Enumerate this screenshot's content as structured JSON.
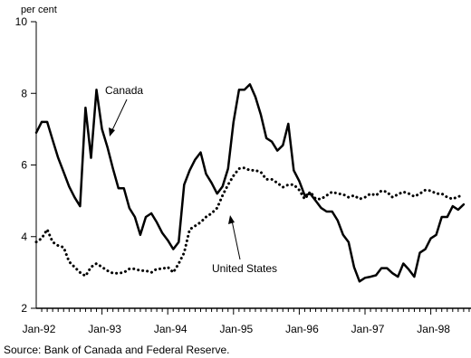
{
  "chart_data": {
    "type": "line",
    "title": "",
    "xlabel": "",
    "ylabel": "per cent",
    "ylim": [
      2,
      10
    ],
    "yticks": [
      10,
      8,
      6,
      4,
      2
    ],
    "x_start": "Jan-92",
    "x_end": "Apr-98",
    "x_ticklabels": [
      "Jan-92",
      "Jan-93",
      "Jan-94",
      "Jan-95",
      "Jan-96",
      "Jan-97",
      "Jan-98"
    ],
    "grid": false,
    "series": [
      {
        "name": "Canada",
        "style": "solid",
        "color": "#000000",
        "values": [
          6.9,
          7.2,
          7.2,
          6.7,
          6.2,
          5.8,
          5.4,
          5.1,
          4.85,
          7.6,
          6.2,
          8.1,
          7.0,
          6.5,
          5.9,
          5.35,
          5.35,
          4.8,
          4.55,
          4.05,
          4.55,
          4.65,
          4.4,
          4.1,
          3.9,
          3.65,
          3.85,
          5.45,
          5.85,
          6.15,
          6.35,
          5.75,
          5.5,
          5.2,
          5.4,
          5.9,
          7.2,
          8.1,
          8.1,
          8.25,
          7.9,
          7.4,
          6.75,
          6.65,
          6.4,
          6.55,
          7.15,
          5.85,
          5.55,
          5.15,
          5.2,
          5.0,
          4.8,
          4.7,
          4.7,
          4.45,
          4.05,
          3.85,
          3.15,
          2.75,
          2.85,
          2.88,
          2.92,
          3.12,
          3.12,
          2.98,
          2.88,
          3.25,
          3.08,
          2.88,
          3.55,
          3.65,
          3.95,
          4.05,
          4.55,
          4.55,
          4.85,
          4.75,
          4.9
        ]
      },
      {
        "name": "United States",
        "style": "dotted",
        "color": "#000000",
        "values": [
          3.85,
          3.95,
          4.2,
          3.85,
          3.75,
          3.7,
          3.3,
          3.15,
          3.0,
          2.9,
          3.15,
          3.25,
          3.15,
          3.05,
          2.98,
          2.98,
          3.0,
          3.1,
          3.1,
          3.05,
          3.05,
          3.0,
          3.1,
          3.1,
          3.15,
          3.0,
          3.25,
          3.55,
          4.2,
          4.3,
          4.4,
          4.55,
          4.65,
          4.8,
          5.15,
          5.45,
          5.7,
          5.9,
          5.92,
          5.85,
          5.85,
          5.8,
          5.6,
          5.6,
          5.5,
          5.38,
          5.45,
          5.45,
          5.3,
          5.05,
          5.25,
          5.05,
          5.05,
          5.15,
          5.25,
          5.2,
          5.18,
          5.1,
          5.15,
          5.05,
          5.1,
          5.2,
          5.15,
          5.28,
          5.25,
          5.1,
          5.18,
          5.25,
          5.2,
          5.12,
          5.2,
          5.3,
          5.28,
          5.2,
          5.2,
          5.1,
          5.05,
          5.12,
          5.15
        ]
      }
    ],
    "annotations": [
      {
        "text": "Canada",
        "points_to_series": "Canada"
      },
      {
        "text": "United States",
        "points_to_series": "United States"
      }
    ],
    "source": "Source: Bank of Canada and Federal Reserve."
  }
}
